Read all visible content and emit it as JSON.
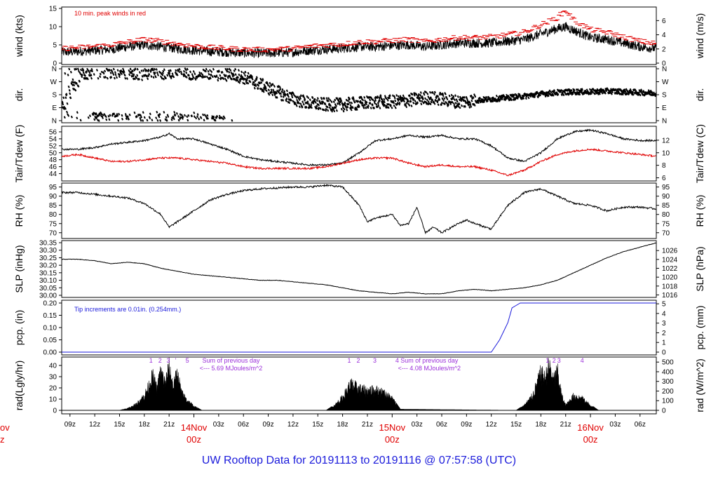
{
  "footer": {
    "title_parts": [
      "UW Rooftop Data for",
      "20191113",
      "to",
      "20191116",
      "@",
      "07:57:58",
      "(UTC)"
    ],
    "title": "UW Rooftop Data for 20191113  to  20191116 @ 07:57:58  (UTC)"
  },
  "x_axis": {
    "hours_start": 8.0,
    "hours_end": 79.97,
    "tick_labels": [
      "09z",
      "12z",
      "15z",
      "18z",
      "21z",
      "03z",
      "06z",
      "09z",
      "12z",
      "15z",
      "18z",
      "21z",
      "03z",
      "06z",
      "09z",
      "12z",
      "15z",
      "18z",
      "21z",
      "03z",
      "06z"
    ],
    "tick_hours": [
      9,
      12,
      15,
      18,
      21,
      27,
      30,
      33,
      36,
      39,
      42,
      45,
      51,
      54,
      57,
      60,
      63,
      66,
      69,
      75,
      78
    ],
    "day_labels": [
      {
        "line1": "14Nov",
        "line2": "00z",
        "hour": 24
      },
      {
        "line1": "15Nov",
        "line2": "00z",
        "hour": 48
      },
      {
        "line1": "16Nov",
        "line2": "00z",
        "hour": 72
      }
    ],
    "left_clip_label": {
      "line1": "ov",
      "line2": "z"
    }
  },
  "chart_data": [
    {
      "type": "line",
      "id": "wind",
      "ylabel_left": "wind (kts)",
      "ylabel_right": "wind (m/s)",
      "ylim": [
        0,
        15
      ],
      "yticks_left": [
        "0",
        "5",
        "10",
        "15"
      ],
      "yticks_right": [
        "0",
        "2",
        "4",
        "6"
      ],
      "right_scale": {
        "unit": "m/s",
        "factor": 0.5144,
        "ticks": [
          0,
          2,
          4,
          6
        ]
      },
      "annotation": "10 min. peak winds in red",
      "series": [
        {
          "color": "#000000",
          "x": [
            8,
            10,
            12,
            14,
            16,
            18,
            20,
            22,
            24,
            26,
            28,
            30,
            32,
            34,
            36,
            38,
            40,
            42,
            44,
            46,
            48,
            50,
            52,
            54,
            56,
            58,
            60,
            62,
            64,
            66,
            68,
            69,
            70,
            72,
            74,
            76,
            78,
            80
          ],
          "y": [
            3,
            3.2,
            3.5,
            3.8,
            4.5,
            5,
            4.5,
            4,
            3.5,
            3.2,
            3,
            2.8,
            2.7,
            2.8,
            3,
            3.5,
            3.8,
            4,
            4.5,
            4.5,
            4.8,
            5,
            4.5,
            5,
            5.5,
            5.5,
            5.5,
            6,
            6.5,
            8,
            9.5,
            10,
            9,
            7,
            6.5,
            5.5,
            4.5,
            4
          ]
        },
        {
          "color": "#e00000",
          "x": [
            8,
            10,
            12,
            14,
            16,
            18,
            20,
            22,
            24,
            26,
            28,
            30,
            32,
            34,
            36,
            38,
            40,
            42,
            44,
            46,
            48,
            50,
            52,
            54,
            56,
            58,
            60,
            62,
            64,
            66,
            68,
            69,
            70,
            72,
            74,
            76,
            78,
            80
          ],
          "y": [
            4,
            4.3,
            4.6,
            5,
            5.8,
            6.5,
            6,
            5.3,
            4.7,
            4.3,
            4,
            3.8,
            3.7,
            3.8,
            4,
            4.6,
            5,
            5.2,
            5.8,
            5.9,
            6.2,
            6.5,
            5.9,
            6.5,
            7,
            7,
            7.2,
            7.8,
            8.5,
            10.5,
            12.5,
            14.5,
            11.8,
            9.2,
            8.5,
            7.2,
            6,
            5.3
          ]
        }
      ]
    },
    {
      "type": "scatter",
      "id": "dir",
      "ylabel_left": "dir.",
      "ylabel_right": "dir.",
      "ylim": [
        0,
        360
      ],
      "yticks_left": [
        "N",
        "E",
        "S",
        "W",
        "N"
      ],
      "yticks_right": [
        "N",
        "E",
        "S",
        "W",
        "N"
      ],
      "ytick_values": [
        0,
        90,
        180,
        270,
        360
      ],
      "series": [
        {
          "color": "#000000",
          "x": [
            8,
            9,
            10,
            11,
            12,
            14,
            16,
            18,
            20,
            22,
            24,
            26,
            28,
            30,
            32,
            34,
            36,
            38,
            40,
            42,
            44,
            46,
            48,
            50,
            52,
            54,
            56,
            58,
            60,
            62,
            64,
            66,
            68,
            70,
            72,
            74,
            76,
            78,
            80
          ],
          "y": [
            90,
            200,
            300,
            340,
            350,
            350,
            350,
            340,
            345,
            345,
            345,
            340,
            330,
            300,
            250,
            200,
            150,
            120,
            110,
            110,
            120,
            130,
            130,
            140,
            160,
            150,
            130,
            140,
            150,
            160,
            170,
            185,
            195,
            200,
            200,
            205,
            200,
            195,
            190
          ]
        }
      ]
    },
    {
      "type": "line",
      "id": "temp",
      "ylabel_left": "Tair/Tdew (F)",
      "ylabel_right": "Tair/Tdew (C)",
      "ylim": [
        42.5,
        57
      ],
      "yticks_left": [
        "44",
        "46",
        "48",
        "50",
        "52",
        "54",
        "56"
      ],
      "yticks_right": [
        "6",
        "8",
        "10",
        "12"
      ],
      "right_scale": {
        "unit": "C",
        "ticks": [
          6,
          8,
          10,
          12
        ]
      },
      "series": [
        {
          "color": "#000000",
          "x": [
            8,
            10,
            12,
            14,
            16,
            18,
            20,
            21,
            22,
            24,
            26,
            28,
            30,
            32,
            34,
            36,
            38,
            40,
            42,
            44,
            46,
            48,
            50,
            52,
            54,
            56,
            58,
            60,
            62,
            64,
            66,
            68,
            70,
            72,
            74,
            76,
            78,
            80
          ],
          "y": [
            51,
            51,
            51.5,
            52.5,
            53,
            53.5,
            54.5,
            55.5,
            54,
            54,
            52.5,
            51,
            49,
            48,
            47.5,
            47,
            46.5,
            46.5,
            47,
            50,
            53.5,
            54,
            55,
            54.5,
            55,
            54,
            54,
            52,
            48.5,
            47.5,
            50,
            54,
            56,
            56.5,
            55.5,
            54,
            53.5,
            53.5
          ]
        },
        {
          "color": "#e00000",
          "x": [
            8,
            10,
            12,
            14,
            16,
            18,
            20,
            22,
            24,
            26,
            28,
            30,
            32,
            34,
            36,
            38,
            40,
            42,
            44,
            46,
            48,
            50,
            52,
            54,
            56,
            58,
            60,
            62,
            64,
            66,
            68,
            70,
            72,
            74,
            76,
            78,
            80
          ],
          "y": [
            49,
            49.5,
            48.5,
            47.5,
            47.5,
            48,
            48.5,
            48.5,
            48,
            47.5,
            47,
            46,
            45.5,
            45.5,
            45.5,
            45.5,
            46,
            47,
            48,
            48.5,
            48.5,
            47,
            46,
            46.5,
            46,
            46,
            45,
            43.5,
            45,
            47.5,
            49.5,
            50.5,
            51,
            50.5,
            50,
            49.5,
            49
          ]
        }
      ]
    },
    {
      "type": "line",
      "id": "rh",
      "ylabel_left": "RH (%)",
      "ylabel_right": "RH (%)",
      "ylim": [
        68,
        96
      ],
      "yticks_left": [
        "70",
        "75",
        "80",
        "85",
        "90",
        "95"
      ],
      "yticks_right": [
        "70",
        "75",
        "80",
        "85",
        "90",
        "95"
      ],
      "series": [
        {
          "color": "#000000",
          "x": [
            8,
            10,
            12,
            14,
            16,
            18,
            20,
            21,
            22,
            24,
            26,
            28,
            30,
            32,
            34,
            36,
            38,
            40,
            42,
            44,
            45,
            46,
            48,
            49,
            50,
            51,
            52,
            53,
            54,
            56,
            57,
            58,
            60,
            62,
            64,
            66,
            68,
            70,
            72,
            74,
            76,
            78,
            80
          ],
          "y": [
            92,
            92,
            91,
            90,
            89,
            86,
            80,
            73,
            76,
            82,
            88,
            91,
            93,
            94,
            94.5,
            95,
            95,
            96,
            95,
            85,
            76,
            78,
            80,
            74,
            75,
            84,
            70,
            73,
            70,
            75,
            77,
            75,
            72,
            85,
            92,
            94,
            90,
            86,
            85,
            82,
            84,
            84,
            83
          ]
        }
      ]
    },
    {
      "type": "line",
      "id": "slp",
      "ylabel_left": "SLP (inHg)",
      "ylabel_right": "SLP (hPa)",
      "ylim": [
        30.0,
        30.35
      ],
      "yticks_left": [
        "30.00",
        "30.05",
        "30.10",
        "30.15",
        "30.20",
        "30.25",
        "30.30",
        "30.35"
      ],
      "yticks_right": [
        "1016",
        "1018",
        "1020",
        "1022",
        "1024",
        "1026"
      ],
      "right_scale": {
        "unit": "hPa",
        "ticks": [
          1016,
          1018,
          1020,
          1022,
          1024,
          1026
        ]
      },
      "series": [
        {
          "color": "#000000",
          "x": [
            8,
            10,
            12,
            14,
            16,
            18,
            20,
            22,
            24,
            26,
            28,
            30,
            32,
            34,
            36,
            38,
            40,
            42,
            44,
            46,
            48,
            50,
            52,
            54,
            56,
            58,
            60,
            62,
            64,
            66,
            68,
            70,
            72,
            74,
            76,
            78,
            80
          ],
          "y": [
            30.24,
            30.24,
            30.23,
            30.21,
            30.22,
            30.21,
            30.18,
            30.16,
            30.14,
            30.13,
            30.12,
            30.11,
            30.1,
            30.1,
            30.09,
            30.08,
            30.07,
            30.05,
            30.03,
            30.02,
            30.01,
            30.02,
            30.01,
            30.01,
            30.03,
            30.04,
            30.03,
            30.04,
            30.05,
            30.07,
            30.1,
            30.15,
            30.2,
            30.25,
            30.29,
            30.32,
            30.35
          ]
        }
      ]
    },
    {
      "type": "line",
      "id": "pcp",
      "ylabel_left": "pcp. (in)",
      "ylabel_right": "pcp. (mm)",
      "ylim": [
        0,
        0.2
      ],
      "yticks_left": [
        "0.00",
        "0.05",
        "0.10",
        "0.15",
        "0.20"
      ],
      "yticks_right": [
        "0",
        "1",
        "2",
        "3",
        "4",
        "5"
      ],
      "right_scale": {
        "unit": "mm",
        "ticks": [
          0,
          1,
          2,
          3,
          4,
          5
        ]
      },
      "annotation": "Tip increments are 0.01in. (0.254mm.)",
      "series": [
        {
          "color": "#1a1adb",
          "x": [
            8,
            60,
            61,
            62,
            62.5,
            63,
            63.5,
            64,
            80
          ],
          "y": [
            0,
            0,
            0.05,
            0.12,
            0.18,
            0.19,
            0.2,
            0.2,
            0.2
          ]
        }
      ]
    },
    {
      "type": "area",
      "id": "rad",
      "ylabel_left": "rad(Lgly/hr)",
      "ylabel_right": "rad (W/m^2)",
      "ylim": [
        0,
        45
      ],
      "yticks_left": [
        "0",
        "10",
        "20",
        "30",
        "40"
      ],
      "yticks_right": [
        "0",
        "100",
        "200",
        "300",
        "400",
        "500"
      ],
      "right_scale": {
        "unit": "W/m^2",
        "ticks": [
          0,
          100,
          200,
          300,
          400,
          500
        ]
      },
      "annotations": [
        {
          "text": "1",
          "hour": 18.8
        },
        {
          "text": "2",
          "hour": 19.9
        },
        {
          "text": "3",
          "hour": 20.9
        },
        {
          "text": "'",
          "hour": 21.8
        },
        {
          "text": "5",
          "hour": 23.2
        },
        {
          "text": "Sum of previous day",
          "hour": 28.5
        },
        {
          "text": "<--- 5.69 MJoules/m^2",
          "hour": 28.5
        },
        {
          "text": "1",
          "hour": 42.8
        },
        {
          "text": "2",
          "hour": 43.9
        },
        {
          "text": "3",
          "hour": 45.9
        },
        {
          "text": "4",
          "hour": 48.6
        },
        {
          "text": "Sum of previous day",
          "hour": 52.5
        },
        {
          "text": "<--- 4.08 MJoules/m^2",
          "hour": 52.5
        },
        {
          "text": "1",
          "hour": 66.8
        },
        {
          "text": "2",
          "hour": 67.6
        },
        {
          "text": "3",
          "hour": 68.2
        },
        {
          "text": "4",
          "hour": 71.0
        }
      ],
      "series": [
        {
          "color": "#000000",
          "x": [
            15,
            16,
            17,
            18,
            18.5,
            19,
            19.5,
            20,
            20.5,
            21,
            21.5,
            22,
            22.5,
            23,
            24,
            25,
            40,
            41,
            42,
            43,
            44,
            45,
            46,
            47,
            48,
            49,
            63,
            64,
            65,
            66,
            66.5,
            67,
            67.5,
            68,
            68.5,
            69,
            69.5,
            70,
            71,
            72,
            73
          ],
          "y": [
            0,
            2,
            6,
            15,
            24,
            35,
            22,
            40,
            28,
            43,
            25,
            38,
            18,
            12,
            4,
            0,
            0,
            5,
            13,
            27,
            22,
            20,
            21,
            18,
            12,
            1,
            0,
            5,
            15,
            38,
            32,
            46,
            30,
            40,
            15,
            5,
            10,
            15,
            12,
            5,
            0
          ]
        }
      ]
    }
  ]
}
